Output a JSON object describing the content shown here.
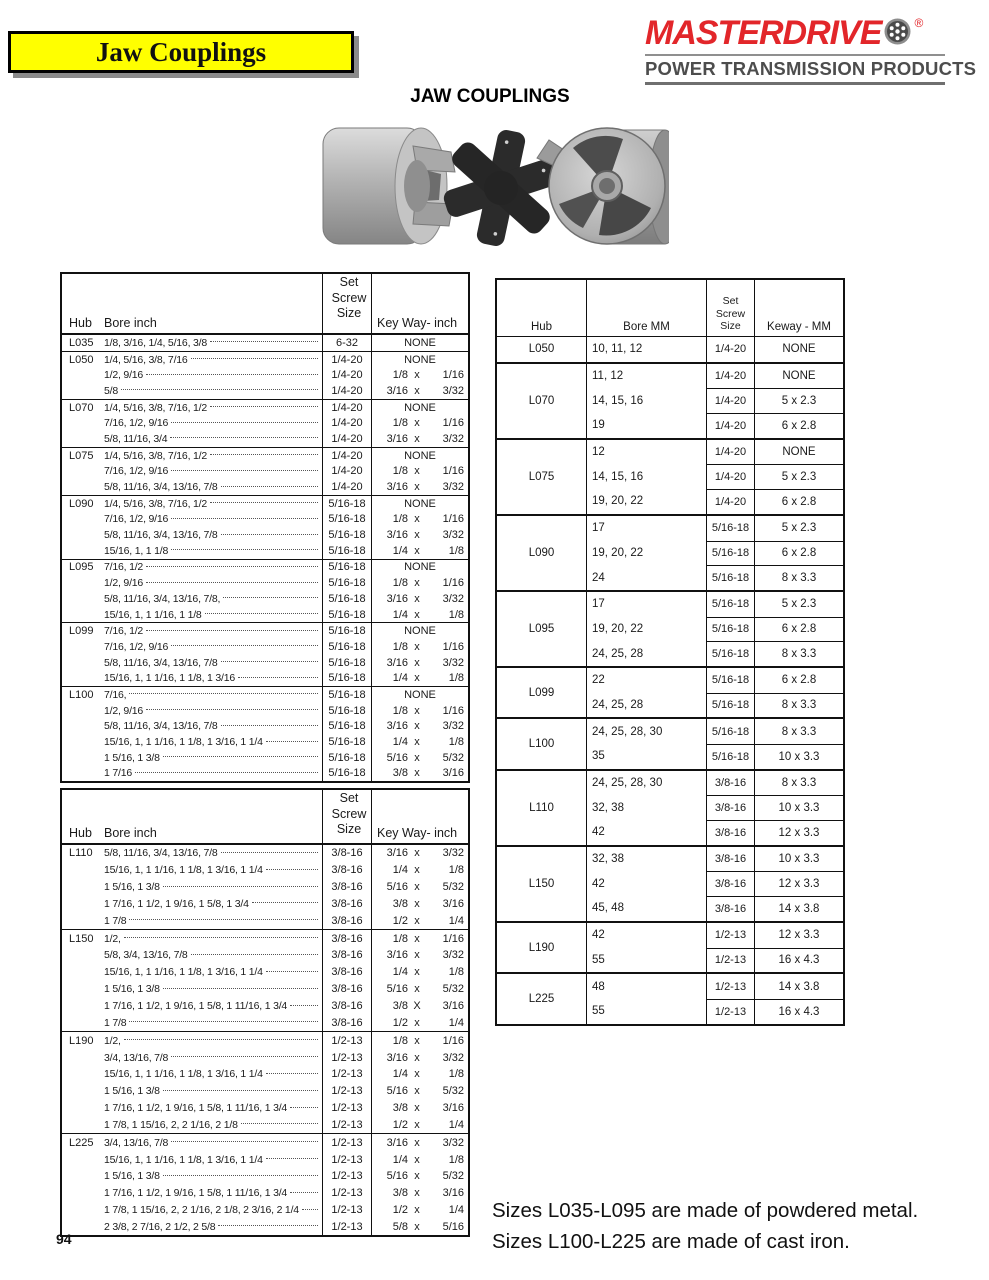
{
  "page": {
    "banner_title": "Jaw Couplings",
    "heading": "JAW COUPLINGS",
    "page_number": "94",
    "footnote_line1": "Sizes L035-L095 are made of powdered metal.",
    "footnote_line2": "Sizes L100-L225 are made of cast iron."
  },
  "logo": {
    "brand": "MASTERDRIVE",
    "registered": "®",
    "tagline": "POWER TRANSMISSION PRODUCTS",
    "brand_color": "#e2262a",
    "icon": "sprocket-icon"
  },
  "inch_header": {
    "hub": "Hub",
    "bore": "Bore inch",
    "set_screw": "Set\nScrew\nSize",
    "keyway": "Key Way- inch"
  },
  "inch_table_1": {
    "groups": [
      {
        "hub": "L035",
        "rows": [
          [
            "1/8, 3/16, 1/4, 5/16, 3/8",
            "6-32",
            "NONE"
          ]
        ]
      },
      {
        "hub": "L050",
        "rows": [
          [
            "1/4, 5/16, 3/8, 7/16",
            "1/4-20",
            "NONE"
          ],
          [
            "1/2, 9/16",
            "1/4-20",
            [
              "1/8",
              "x",
              "1/16"
            ]
          ],
          [
            "5/8",
            "1/4-20",
            [
              "3/16",
              "x",
              "3/32"
            ]
          ]
        ]
      },
      {
        "hub": "L070",
        "rows": [
          [
            "1/4, 5/16, 3/8, 7/16, 1/2",
            "1/4-20",
            "NONE"
          ],
          [
            "7/16, 1/2, 9/16",
            "1/4-20",
            [
              "1/8",
              "x",
              "1/16"
            ]
          ],
          [
            "5/8, 11/16, 3/4",
            "1/4-20",
            [
              "3/16",
              "x",
              "3/32"
            ]
          ]
        ]
      },
      {
        "hub": "L075",
        "rows": [
          [
            "1/4, 5/16, 3/8, 7/16, 1/2",
            "1/4-20",
            "NONE"
          ],
          [
            "7/16, 1/2, 9/16",
            "1/4-20",
            [
              "1/8",
              "x",
              "1/16"
            ]
          ],
          [
            "5/8, 11/16, 3/4, 13/16, 7/8",
            "1/4-20",
            [
              "3/16",
              "x",
              "3/32"
            ]
          ]
        ]
      },
      {
        "hub": "L090",
        "rows": [
          [
            "1/4, 5/16, 3/8, 7/16, 1/2",
            "5/16-18",
            "NONE"
          ],
          [
            "7/16, 1/2, 9/16",
            "5/16-18",
            [
              "1/8",
              "x",
              "1/16"
            ]
          ],
          [
            "5/8, 11/16, 3/4, 13/16, 7/8",
            "5/16-18",
            [
              "3/16",
              "x",
              "3/32"
            ]
          ],
          [
            "15/16, 1, 1 1/8",
            "5/16-18",
            [
              "1/4",
              "x",
              "1/8"
            ]
          ]
        ]
      },
      {
        "hub": "L095",
        "rows": [
          [
            "7/16, 1/2",
            "5/16-18",
            "NONE"
          ],
          [
            "1/2, 9/16",
            "5/16-18",
            [
              "1/8",
              "x",
              "1/16"
            ]
          ],
          [
            "5/8, 11/16, 3/4, 13/16, 7/8,",
            "5/16-18",
            [
              "3/16",
              "x",
              "3/32"
            ]
          ],
          [
            "15/16, 1, 1 1/16, 1 1/8",
            "5/16-18",
            [
              "1/4",
              "x",
              "1/8"
            ]
          ]
        ]
      },
      {
        "hub": "L099",
        "rows": [
          [
            "7/16, 1/2",
            "5/16-18",
            "NONE"
          ],
          [
            "7/16, 1/2, 9/16",
            "5/16-18",
            [
              "1/8",
              "x",
              "1/16"
            ]
          ],
          [
            "5/8, 11/16, 3/4, 13/16, 7/8",
            "5/16-18",
            [
              "3/16",
              "x",
              "3/32"
            ]
          ],
          [
            "15/16, 1, 1 1/16, 1 1/8, 1 3/16",
            "5/16-18",
            [
              "1/4",
              "x",
              "1/8"
            ]
          ]
        ]
      },
      {
        "hub": "L100",
        "rows": [
          [
            "7/16,",
            "5/16-18",
            "NONE"
          ],
          [
            "1/2, 9/16",
            "5/16-18",
            [
              "1/8",
              "x",
              "1/16"
            ]
          ],
          [
            "5/8, 11/16, 3/4, 13/16, 7/8",
            "5/16-18",
            [
              "3/16",
              "x",
              "3/32"
            ]
          ],
          [
            "15/16, 1, 1 1/16, 1 1/8, 1 3/16, 1 1/4",
            "5/16-18",
            [
              "1/4",
              "x",
              "1/8"
            ]
          ],
          [
            "1 5/16, 1 3/8",
            "5/16-18",
            [
              "5/16",
              "x",
              "5/32"
            ]
          ],
          [
            "1 7/16",
            "5/16-18",
            [
              "3/8",
              "x",
              "3/16"
            ]
          ]
        ]
      }
    ]
  },
  "inch_table_2": {
    "groups": [
      {
        "hub": "L110",
        "rows": [
          [
            "5/8, 11/16, 3/4, 13/16, 7/8",
            "3/8-16",
            [
              "3/16",
              "x",
              "3/32"
            ]
          ],
          [
            "15/16, 1, 1 1/16, 1 1/8, 1 3/16, 1 1/4",
            "3/8-16",
            [
              "1/4",
              "x",
              "1/8"
            ]
          ],
          [
            "1 5/16, 1 3/8",
            "3/8-16",
            [
              "5/16",
              "x",
              "5/32"
            ]
          ],
          [
            "1 7/16, 1 1/2, 1 9/16, 1 5/8, 1 3/4",
            "3/8-16",
            [
              "3/8",
              "x",
              "3/16"
            ]
          ],
          [
            "1 7/8",
            "3/8-16",
            [
              "1/2",
              "x",
              "1/4"
            ]
          ]
        ]
      },
      {
        "hub": "L150",
        "rows": [
          [
            "1/2,",
            "3/8-16",
            [
              "1/8",
              "x",
              "1/16"
            ]
          ],
          [
            "5/8, 3/4, 13/16, 7/8",
            "3/8-16",
            [
              "3/16",
              "x",
              "3/32"
            ]
          ],
          [
            "15/16, 1, 1 1/16, 1 1/8, 1 3/16, 1 1/4",
            "3/8-16",
            [
              "1/4",
              "x",
              "1/8"
            ]
          ],
          [
            "1 5/16, 1 3/8",
            "3/8-16",
            [
              "5/16",
              "x",
              "5/32"
            ]
          ],
          [
            "1 7/16, 1 1/2, 1 9/16, 1 5/8, 1 11/16, 1 3/4",
            "3/8-16",
            [
              "3/8",
              "X",
              "3/16"
            ]
          ],
          [
            "1 7/8",
            "3/8-16",
            [
              "1/2",
              "x",
              "1/4"
            ]
          ]
        ]
      },
      {
        "hub": "L190",
        "rows": [
          [
            "1/2,",
            "1/2-13",
            [
              "1/8",
              "x",
              "1/16"
            ]
          ],
          [
            "3/4, 13/16, 7/8",
            "1/2-13",
            [
              "3/16",
              "x",
              "3/32"
            ]
          ],
          [
            "15/16, 1, 1 1/16, 1 1/8, 1 3/16, 1 1/4",
            "1/2-13",
            [
              "1/4",
              "x",
              "1/8"
            ]
          ],
          [
            "1 5/16, 1 3/8",
            "1/2-13",
            [
              "5/16",
              "x",
              "5/32"
            ]
          ],
          [
            "1 7/16, 1 1/2, 1 9/16, 1 5/8, 1 11/16, 1 3/4",
            "1/2-13",
            [
              "3/8",
              "x",
              "3/16"
            ]
          ],
          [
            "1 7/8, 1 15/16, 2, 2 1/16, 2 1/8",
            "1/2-13",
            [
              "1/2",
              "x",
              "1/4"
            ]
          ]
        ]
      },
      {
        "hub": "L225",
        "rows": [
          [
            "3/4, 13/16, 7/8",
            "1/2-13",
            [
              "3/16",
              "x",
              "3/32"
            ]
          ],
          [
            "15/16, 1, 1 1/16, 1 1/8, 1 3/16, 1 1/4",
            "1/2-13",
            [
              "1/4",
              "x",
              "1/8"
            ]
          ],
          [
            "1 5/16, 1 3/8",
            "1/2-13",
            [
              "5/16",
              "x",
              "5/32"
            ]
          ],
          [
            "1 7/16, 1 1/2, 1 9/16, 1 5/8, 1 11/16, 1 3/4",
            "1/2-13",
            [
              "3/8",
              "x",
              "3/16"
            ]
          ],
          [
            "1 7/8, 1 15/16, 2, 2 1/16, 2 1/8, 2 3/16, 2 1/4",
            "1/2-13",
            [
              "1/2",
              "x",
              "1/4"
            ]
          ],
          [
            "2 3/8, 2 7/16, 2 1/2, 2 5/8",
            "1/2-13",
            [
              "5/8",
              "x",
              "5/16"
            ]
          ]
        ]
      }
    ]
  },
  "metric_header": {
    "hub": "Hub",
    "bore": "Bore MM",
    "set_screw": "Set\nScrew\nSize",
    "keyway": "Keway - MM"
  },
  "metric_table": {
    "groups": [
      {
        "hub": "L050",
        "rows": [
          [
            "10, 11, 12",
            "1/4-20",
            "NONE"
          ]
        ]
      },
      {
        "hub": "L070",
        "rows": [
          [
            "11, 12",
            "1/4-20",
            "NONE"
          ],
          [
            "14, 15, 16",
            "1/4-20",
            "5 x 2.3"
          ],
          [
            "19",
            "1/4-20",
            "6 x 2.8"
          ]
        ]
      },
      {
        "hub": "L075",
        "rows": [
          [
            "12",
            "1/4-20",
            "NONE"
          ],
          [
            "14, 15, 16",
            "1/4-20",
            "5 x 2.3"
          ],
          [
            "19, 20, 22",
            "1/4-20",
            "6 x 2.8"
          ]
        ]
      },
      {
        "hub": "L090",
        "rows": [
          [
            "17",
            "5/16-18",
            "5 x 2.3"
          ],
          [
            "19, 20, 22",
            "5/16-18",
            "6 x 2.8"
          ],
          [
            "24",
            "5/16-18",
            "8 x 3.3"
          ]
        ]
      },
      {
        "hub": "L095",
        "rows": [
          [
            "17",
            "5/16-18",
            "5 x 2.3"
          ],
          [
            "19, 20, 22",
            "5/16-18",
            "6 x 2.8"
          ],
          [
            "24, 25, 28",
            "5/16-18",
            "8 x 3.3"
          ]
        ]
      },
      {
        "hub": "L099",
        "rows": [
          [
            "22",
            "5/16-18",
            "6 x 2.8"
          ],
          [
            "24, 25, 28",
            "5/16-18",
            "8 x 3.3"
          ]
        ]
      },
      {
        "hub": "L100",
        "rows": [
          [
            "24, 25, 28, 30",
            "5/16-18",
            "8 x 3.3"
          ],
          [
            "35",
            "5/16-18",
            "10 x 3.3"
          ]
        ]
      },
      {
        "hub": "L110",
        "rows": [
          [
            "24, 25, 28, 30",
            "3/8-16",
            "8 x 3.3"
          ],
          [
            "32, 38",
            "3/8-16",
            "10 x 3.3"
          ],
          [
            "42",
            "3/8-16",
            "12 x 3.3"
          ]
        ]
      },
      {
        "hub": "L150",
        "rows": [
          [
            "32, 38",
            "3/8-16",
            "10 x 3.3"
          ],
          [
            "42",
            "3/8-16",
            "12 x 3.3"
          ],
          [
            "45, 48",
            "3/8-16",
            "14 x 3.8"
          ]
        ]
      },
      {
        "hub": "L190",
        "rows": [
          [
            "42",
            "1/2-13",
            "12 x 3.3"
          ],
          [
            "55",
            "1/2-13",
            "16 x 4.3"
          ]
        ]
      },
      {
        "hub": "L225",
        "rows": [
          [
            "48",
            "1/2-13",
            "14 x 3.8"
          ],
          [
            "55",
            "1/2-13",
            "16 x 4.3"
          ]
        ]
      }
    ]
  }
}
